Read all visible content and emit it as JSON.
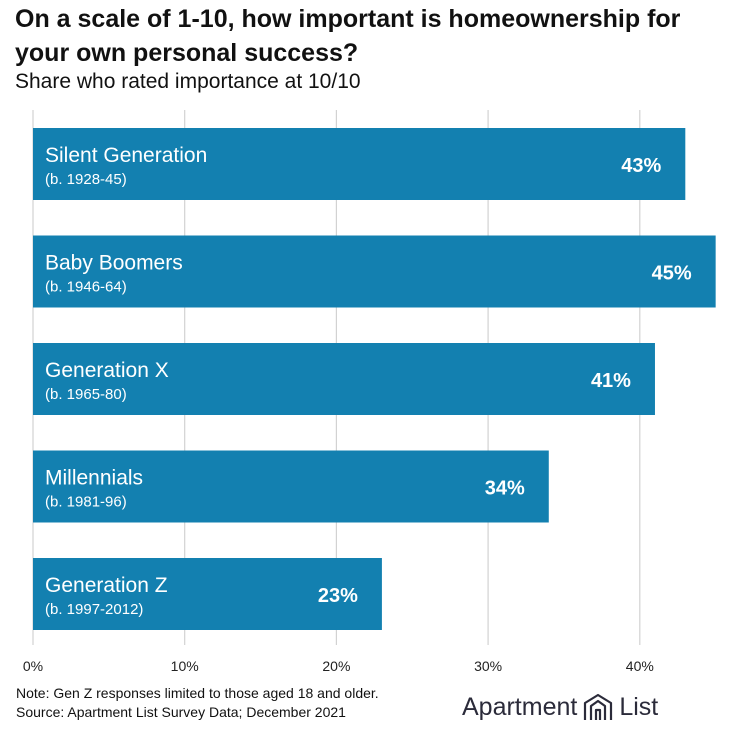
{
  "title": "On a scale of 1-10, how important is homeownership for your own personal success?",
  "subtitle": "Share who rated importance at 10/10",
  "chart_data": {
    "type": "bar",
    "orientation": "horizontal",
    "title": "On a scale of 1-10, how important is homeownership for your own personal success?",
    "subtitle": "Share who rated importance at 10/10",
    "categories": [
      "Silent Generation",
      "Baby Boomers",
      "Generation X",
      "Millennials",
      "Generation Z"
    ],
    "category_sublabels": [
      "(b. 1928-45)",
      "(b. 1946-64)",
      "(b. 1965-80)",
      "(b. 1981-96)",
      "(b. 1997-2012)"
    ],
    "values": [
      43,
      45,
      41,
      34,
      23
    ],
    "value_labels": [
      "43%",
      "45%",
      "41%",
      "34%",
      "23%"
    ],
    "xlim": [
      0,
      45
    ],
    "xticks": [
      0,
      10,
      20,
      30,
      40
    ],
    "xtick_labels": [
      "0%",
      "10%",
      "20%",
      "30%",
      "40%"
    ],
    "grid": "vertical",
    "bar_color": "#1380b0",
    "grid_color": "#d2d2d2",
    "label_color": "#ffffff"
  },
  "footer": {
    "note": "Note: Gen Z responses limited to those aged 18 and older.",
    "source": "Source: Apartment List Survey Data; December 2021"
  },
  "logo": {
    "left": "Apartment",
    "right": "List",
    "icon": "building-logo-icon"
  }
}
